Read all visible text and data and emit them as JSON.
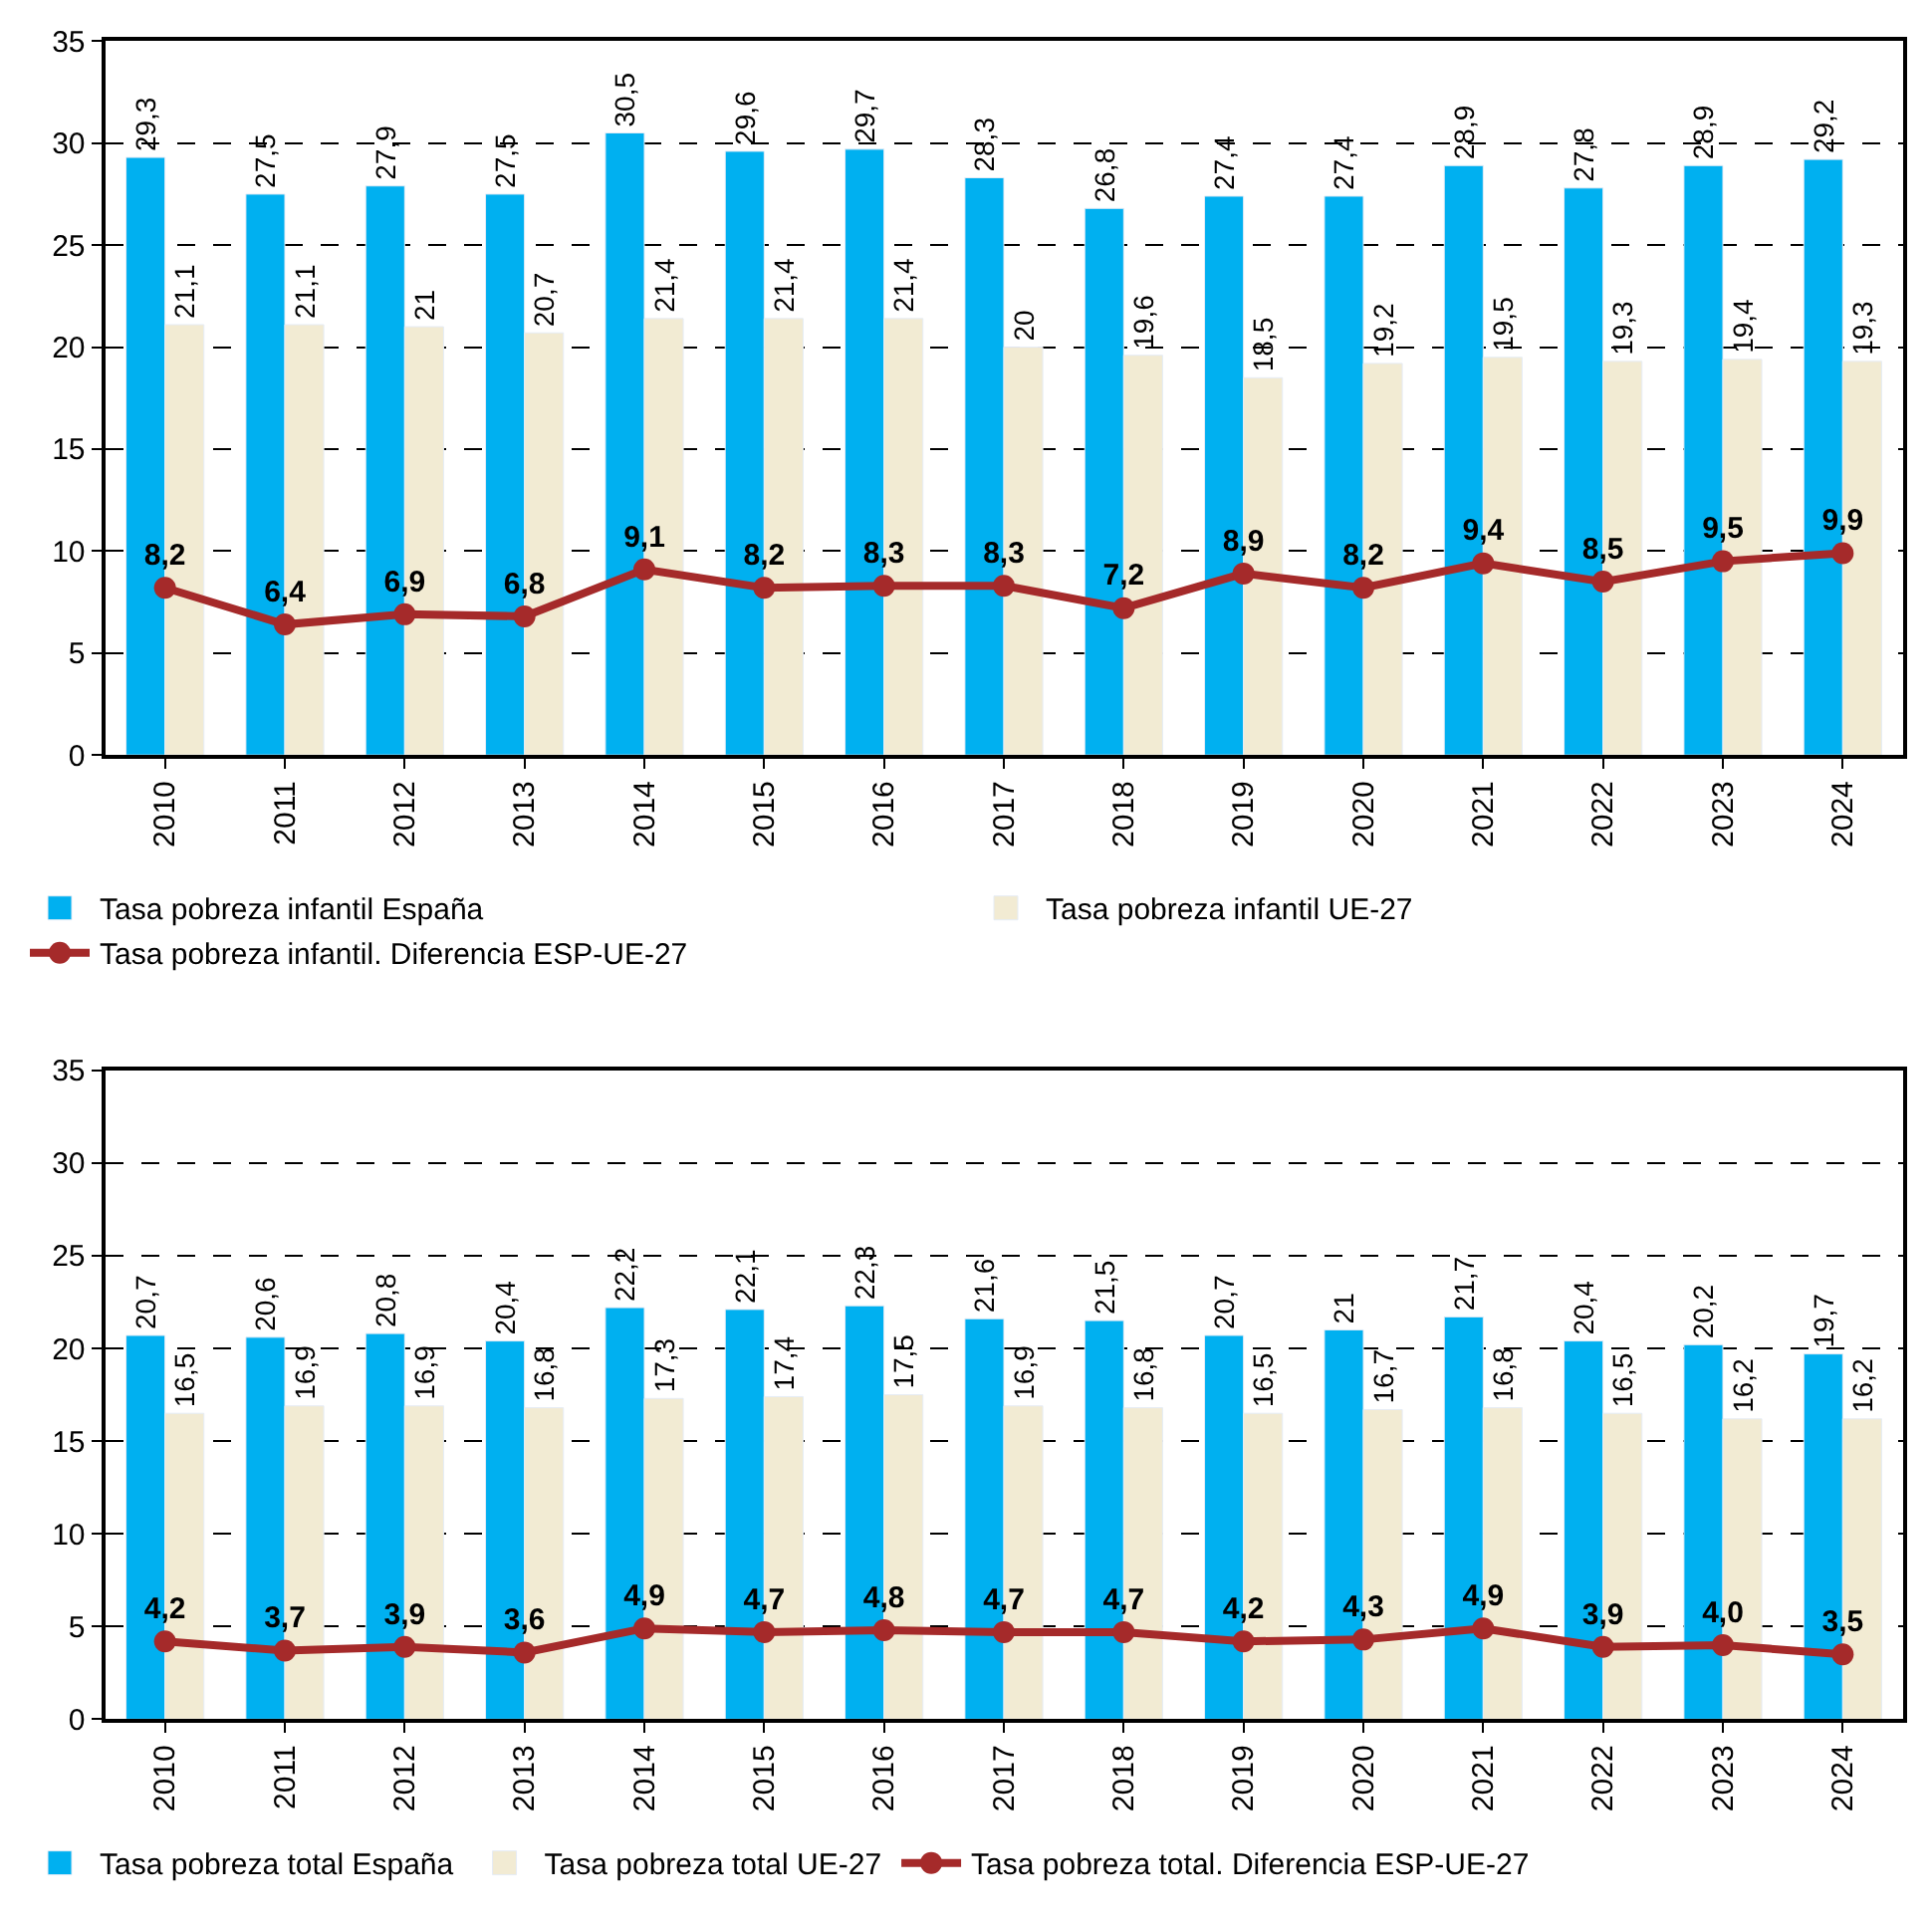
{
  "chart_data": [
    {
      "type": "bar",
      "categories": [
        "2010",
        "2011",
        "2012",
        "2013",
        "2014",
        "2015",
        "2016",
        "2017",
        "2018",
        "2019",
        "2020",
        "2021",
        "2022",
        "2023",
        "2024"
      ],
      "ylim": [
        0,
        35
      ],
      "yticks": [
        0,
        5,
        10,
        15,
        20,
        25,
        30,
        35
      ],
      "grid": "y",
      "legend": "bottom",
      "series": [
        {
          "name": "Tasa pobreza infantil España",
          "color": "#00b0f0",
          "values": [
            29.3,
            27.5,
            27.9,
            27.5,
            30.5,
            29.6,
            29.7,
            28.3,
            26.8,
            27.4,
            27.4,
            28.9,
            27.8,
            28.9,
            29.2
          ],
          "value_labels": [
            "29,3",
            "27,5",
            "27,9",
            "27,5",
            "30,5",
            "29,6",
            "29,7",
            "28,3",
            "26,8",
            "27,4",
            "27,4",
            "28,9",
            "27,8",
            "28,9",
            "29,2"
          ]
        },
        {
          "name": "Tasa pobreza infantil UE-27",
          "color": "#f2ebd3",
          "values": [
            21.1,
            21.1,
            21,
            20.7,
            21.4,
            21.4,
            21.4,
            20,
            19.6,
            18.5,
            19.2,
            19.5,
            19.3,
            19.4,
            19.3
          ],
          "value_labels": [
            "21,1",
            "21,1",
            "21",
            "20,7",
            "21,4",
            "21,4",
            "21,4",
            "20",
            "19,6",
            "18,5",
            "19,2",
            "19,5",
            "19,3",
            "19,4",
            "19,3"
          ]
        },
        {
          "name": "Tasa pobreza infantil. Diferencia ESP-UE-27",
          "type": "line",
          "marker": "circle",
          "color": "#a52a2a",
          "values": [
            8.2,
            6.4,
            6.9,
            6.8,
            9.1,
            8.2,
            8.3,
            8.3,
            7.2,
            8.9,
            8.2,
            9.4,
            8.5,
            9.5,
            9.9
          ],
          "value_labels": [
            "8,2",
            "6,4",
            "6,9",
            "6,8",
            "9,1",
            "8,2",
            "8,3",
            "8,3",
            "7,2",
            "8,9",
            "8,2",
            "9,4",
            "8,5",
            "9,5",
            "9,9"
          ]
        }
      ]
    },
    {
      "type": "bar",
      "categories": [
        "2010",
        "2011",
        "2012",
        "2013",
        "2014",
        "2015",
        "2016",
        "2017",
        "2018",
        "2019",
        "2020",
        "2021",
        "2022",
        "2023",
        "2024"
      ],
      "ylim": [
        0,
        35
      ],
      "yticks": [
        0,
        5,
        10,
        15,
        20,
        25,
        30,
        35
      ],
      "grid": "y",
      "legend": "bottom",
      "series": [
        {
          "name": "Tasa pobreza total España",
          "color": "#00b0f0",
          "values": [
            20.7,
            20.6,
            20.8,
            20.4,
            22.2,
            22.1,
            22.3,
            21.6,
            21.5,
            20.7,
            21,
            21.7,
            20.4,
            20.2,
            19.7
          ],
          "value_labels": [
            "20,7",
            "20,6",
            "20,8",
            "20,4",
            "22,2",
            "22,1",
            "22,3",
            "21,6",
            "21,5",
            "20,7",
            "21",
            "21,7",
            "20,4",
            "20,2",
            "19,7"
          ]
        },
        {
          "name": "Tasa pobreza total UE-27",
          "color": "#f2ebd3",
          "values": [
            16.5,
            16.9,
            16.9,
            16.8,
            17.3,
            17.4,
            17.5,
            16.9,
            16.8,
            16.5,
            16.7,
            16.8,
            16.5,
            16.2,
            16.2
          ],
          "value_labels": [
            "16,5",
            "16,9",
            "16,9",
            "16,8",
            "17,3",
            "17,4",
            "17,5",
            "16,9",
            "16,8",
            "16,5",
            "16,7",
            "16,8",
            "16,5",
            "16,2",
            "16,2"
          ]
        },
        {
          "name": "Tasa pobreza total. Diferencia ESP-UE-27",
          "type": "line",
          "marker": "circle",
          "color": "#a52a2a",
          "values": [
            4.2,
            3.7,
            3.9,
            3.6,
            4.9,
            4.7,
            4.8,
            4.7,
            4.7,
            4.2,
            4.3,
            4.9,
            3.9,
            4.0,
            3.5
          ],
          "value_labels": [
            "4,2",
            "3,7",
            "3,9",
            "3,6",
            "4,9",
            "4,7",
            "4,8",
            "4,7",
            "4,7",
            "4,2",
            "4,3",
            "4,9",
            "3,9",
            "4,0",
            "3,5"
          ]
        }
      ]
    }
  ]
}
